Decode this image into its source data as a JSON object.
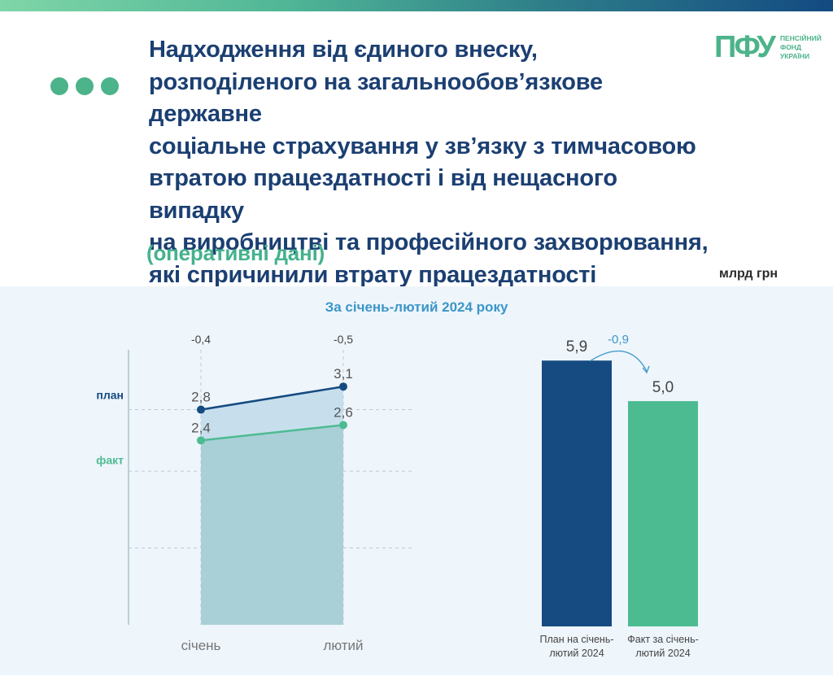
{
  "header": {
    "title_lines": [
      "Надходження від єдиного внеску,",
      "розподіленого на загальнообов’язкове державне",
      "соціальне страхування у зв’язку з тимчасовою",
      "втратою працездатності і від нещасного випадку",
      "на виробництві та професійного захворювання,",
      "які спричинили втрату працездатності"
    ],
    "subtitle": "(оперативні дані)",
    "unit": "млрд грн"
  },
  "logo": {
    "mark": "ПФУ",
    "lines": [
      "ПЕНСІЙНИЙ",
      "ФОНД",
      "УКРАЇНИ"
    ]
  },
  "panel_title": "За січень-лютий 2024 року",
  "colors": {
    "plan": "#154b80",
    "fact": "#4dbb91",
    "area": "#a9d0d6",
    "gap": "#c7dfed",
    "accent_text": "#3c96c8"
  },
  "chart_data": [
    {
      "type": "line",
      "categories": [
        "січень",
        "лютий"
      ],
      "series": [
        {
          "name": "план",
          "values": [
            2.8,
            3.1
          ],
          "labels": [
            "2,8",
            "3,1"
          ]
        },
        {
          "name": "факт",
          "values": [
            2.4,
            2.6
          ],
          "labels": [
            "2,4",
            "2,6"
          ]
        }
      ],
      "differences": [
        "-0,4",
        "-0,5"
      ],
      "ylim": [
        0,
        3.6
      ],
      "grid": true
    },
    {
      "type": "bar",
      "categories": [
        "План на січень-лютий 2024",
        "Факт за січень-лютий 2024"
      ],
      "category_lines": [
        [
          "План на січень-",
          "лютий 2024"
        ],
        [
          "Факт за січень-",
          "лютий 2024"
        ]
      ],
      "values": [
        5.9,
        5.0
      ],
      "labels": [
        "5,9",
        "5,0"
      ],
      "difference": "-0,9",
      "ylim": [
        0,
        6.5
      ]
    }
  ]
}
